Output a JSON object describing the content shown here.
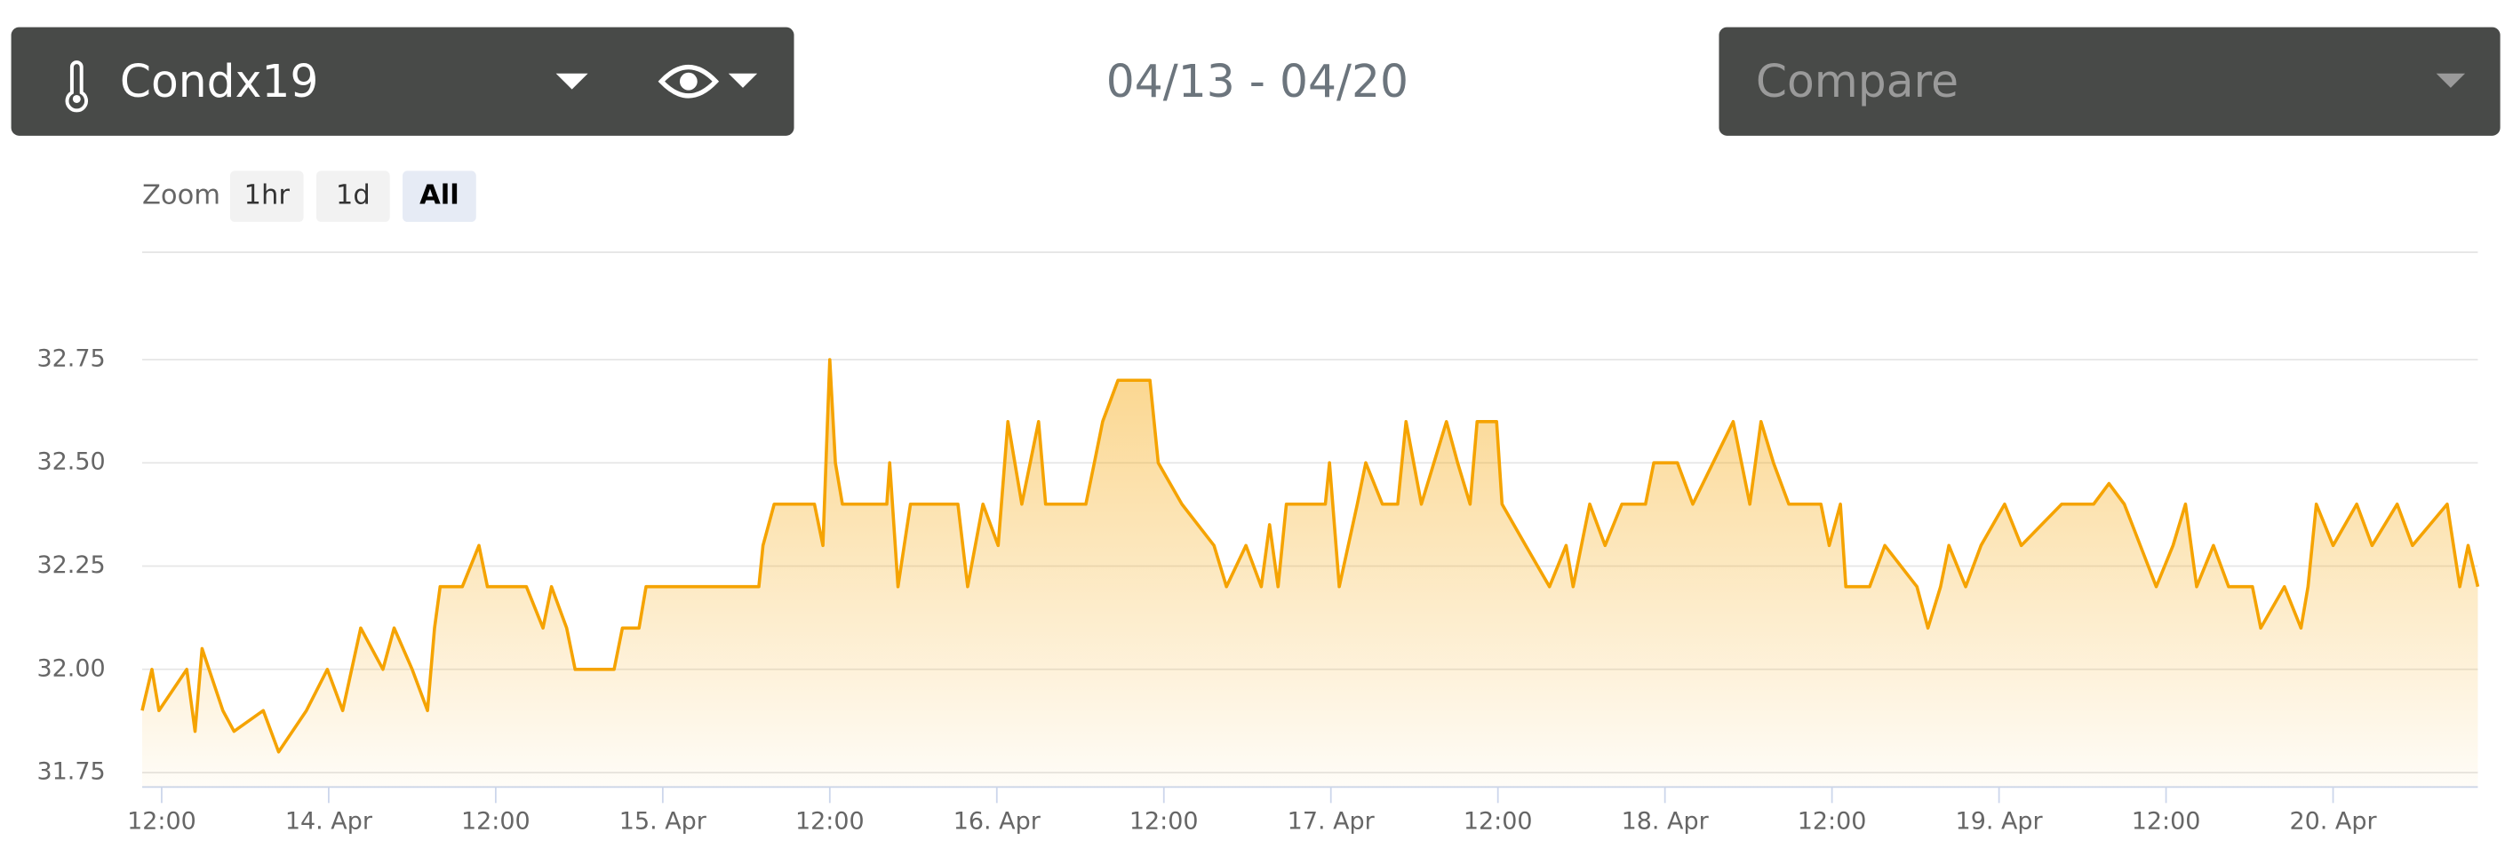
{
  "header": {
    "sensor": "Condx19",
    "date_range": "04/13 - 04/20",
    "compare": "Compare"
  },
  "zoom": {
    "label": "Zoom",
    "buttons": [
      "1hr",
      "1d",
      "All"
    ]
  },
  "chart_data": {
    "type": "area",
    "x": [
      10.6,
      11.3,
      11.8,
      13.8,
      14.4,
      14.9,
      16.4,
      17.2,
      19.3,
      20.4,
      22.4,
      23.9,
      25.0,
      26.3,
      27.9,
      28.7,
      30.0,
      31.1,
      31.6,
      32.0,
      33.6,
      34.8,
      35.4,
      38.2,
      39.4,
      40.0,
      41.1,
      41.7,
      44.5,
      45.1,
      46.3,
      46.8,
      54.3,
      54.9,
      55.2,
      56.0,
      58.9,
      59.5,
      60.0,
      60.4,
      60.9,
      64.1,
      64.3,
      64.9,
      65.8,
      69.2,
      69.9,
      71.0,
      72.1,
      72.8,
      73.8,
      75.0,
      75.5,
      78.4,
      79.0,
      79.6,
      80.7,
      83.0,
      83.6,
      85.3,
      87.6,
      88.5,
      89.9,
      91.0,
      91.6,
      92.2,
      92.8,
      95.6,
      95.9,
      96.6,
      97.9,
      98.5,
      99.7,
      100.8,
      101.4,
      102.5,
      104.3,
      105.1,
      106.0,
      106.5,
      107.9,
      108.3,
      110.0,
      111.7,
      112.9,
      113.4,
      114.6,
      115.7,
      116.9,
      118.6,
      119.2,
      120.9,
      122.0,
      124.9,
      126.1,
      126.9,
      127.8,
      128.9,
      131.2,
      131.8,
      132.6,
      133.0,
      134.7,
      135.8,
      138.1,
      138.9,
      139.8,
      140.4,
      141.6,
      142.7,
      144.4,
      145.6,
      148.5,
      150.8,
      151.9,
      153.0,
      155.3,
      156.5,
      157.4,
      158.2,
      159.4,
      160.5,
      162.2,
      162.8,
      164.5,
      165.7,
      166.2,
      166.8,
      168.0,
      169.7,
      170.8,
      172.6,
      173.7,
      176.2,
      177.1,
      177.7,
      178.4
    ],
    "series": [
      {
        "color": "#f5a300",
        "values": [
          31.9,
          32.0,
          31.9,
          32.0,
          31.85,
          32.05,
          31.9,
          31.85,
          31.9,
          31.8,
          31.9,
          32.0,
          31.9,
          32.1,
          32.0,
          32.1,
          32.0,
          31.9,
          32.1,
          32.2,
          32.2,
          32.3,
          32.2,
          32.2,
          32.1,
          32.2,
          32.1,
          32.0,
          32.0,
          32.1,
          32.1,
          32.2,
          32.2,
          32.2,
          32.3,
          32.4,
          32.4,
          32.3,
          32.75,
          32.5,
          32.4,
          32.4,
          32.5,
          32.2,
          32.4,
          32.4,
          32.2,
          32.4,
          32.3,
          32.6,
          32.4,
          32.6,
          32.4,
          32.4,
          32.5,
          32.6,
          32.7,
          32.7,
          32.5,
          32.4,
          32.3,
          32.2,
          32.3,
          32.2,
          32.35,
          32.2,
          32.4,
          32.4,
          32.5,
          32.2,
          32.4,
          32.5,
          32.4,
          32.4,
          32.6,
          32.4,
          32.6,
          32.5,
          32.4,
          32.6,
          32.6,
          32.4,
          32.3,
          32.2,
          32.3,
          32.2,
          32.4,
          32.3,
          32.4,
          32.4,
          32.5,
          32.5,
          32.4,
          32.6,
          32.4,
          32.6,
          32.5,
          32.4,
          32.4,
          32.3,
          32.4,
          32.2,
          32.2,
          32.3,
          32.2,
          32.1,
          32.2,
          32.3,
          32.2,
          32.3,
          32.4,
          32.3,
          32.4,
          32.4,
          32.45,
          32.4,
          32.2,
          32.3,
          32.4,
          32.2,
          32.3,
          32.2,
          32.2,
          32.1,
          32.2,
          32.1,
          32.2,
          32.4,
          32.3,
          32.4,
          32.3,
          32.4,
          32.3,
          32.4,
          32.2,
          32.3,
          32.2
        ]
      }
    ],
    "xlim": [
      10.6,
      178.4
    ],
    "xticks": [
      {
        "value": 12,
        "label": "12:00"
      },
      {
        "value": 24,
        "label": "14. Apr"
      },
      {
        "value": 36,
        "label": "12:00"
      },
      {
        "value": 48,
        "label": "15. Apr"
      },
      {
        "value": 60,
        "label": "12:00"
      },
      {
        "value": 72,
        "label": "16. Apr"
      },
      {
        "value": 84,
        "label": "12:00"
      },
      {
        "value": 96,
        "label": "17. Apr"
      },
      {
        "value": 108,
        "label": "12:00"
      },
      {
        "value": 120,
        "label": "18. Apr"
      },
      {
        "value": 132,
        "label": "12:00"
      },
      {
        "value": 144,
        "label": "19. Apr"
      },
      {
        "value": 156,
        "label": "12:00"
      },
      {
        "value": 168,
        "label": "20. Apr"
      }
    ],
    "ylim": [
      31.715,
      33.01
    ],
    "yticks": [
      31.75,
      {
        "value": 32,
        "label": "32.00"
      },
      32.25,
      {
        "value": 32.5,
        "label": "32.50"
      },
      32.75
    ],
    "grid": true
  }
}
